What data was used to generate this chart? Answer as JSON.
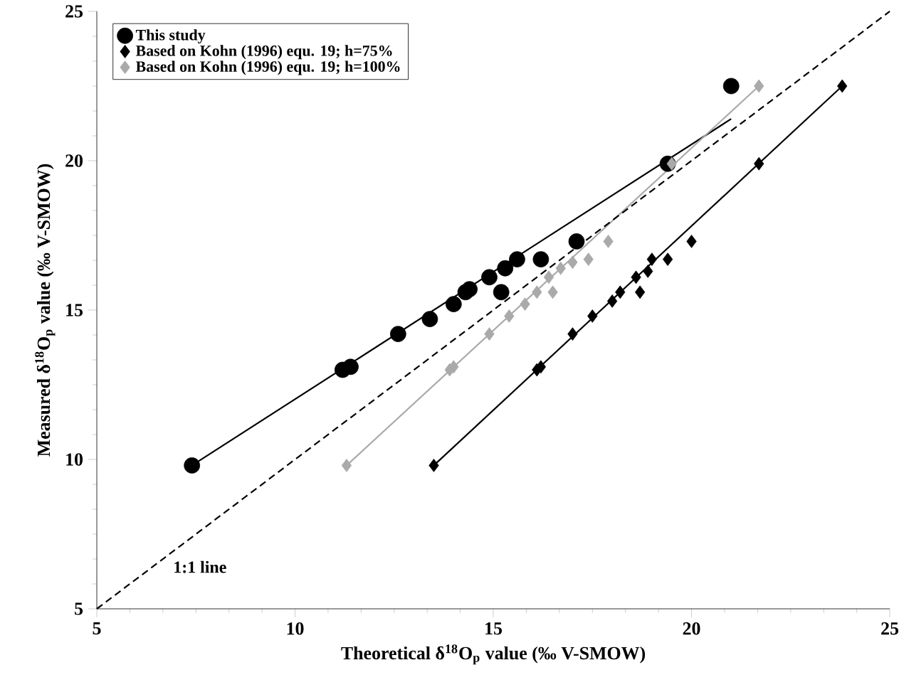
{
  "chart_data": {
    "type": "scatter",
    "xlabel": "Theoretical δ$^{18}$O$_{p}$ value (‰ V-SMOW)",
    "ylabel": "Measured δ$^{18}$O$_{p}$ value (‰ V-SMOW)",
    "xlim": [
      5,
      25
    ],
    "ylim": [
      5,
      25
    ],
    "xticks": [
      5,
      10,
      15,
      20,
      25
    ],
    "yticks": [
      5,
      10,
      15,
      20,
      25
    ],
    "grid": false,
    "legend": "top left",
    "annotations": [
      "1:1 line"
    ],
    "series": [
      {
        "name": "This study",
        "marker": "circle",
        "color": "#000000",
        "x": [
          7.4,
          11.2,
          11.4,
          12.6,
          13.4,
          14.0,
          14.3,
          14.4,
          14.9,
          15.2,
          15.3,
          15.6,
          16.2,
          17.1,
          19.4,
          21.0
        ],
        "values": [
          9.8,
          13.0,
          13.1,
          14.2,
          14.7,
          15.2,
          15.6,
          15.7,
          16.1,
          15.6,
          16.4,
          16.7,
          16.7,
          17.3,
          19.9,
          22.5
        ]
      },
      {
        "name": "Based on Kohn (1996) equ. 19; h=75%",
        "marker": "diamond",
        "color": "#000000",
        "x": [
          13.5,
          16.1,
          16.2,
          17.0,
          17.5,
          18.0,
          18.2,
          18.6,
          18.7,
          18.9,
          19.0,
          19.4,
          20.0,
          21.7,
          23.8
        ],
        "values": [
          9.8,
          13.0,
          13.1,
          14.2,
          14.8,
          15.3,
          15.6,
          16.1,
          15.6,
          16.3,
          16.7,
          16.7,
          17.3,
          19.9,
          22.5
        ]
      },
      {
        "name": "Based on Kohn (1996) equ. 19; h=100%",
        "marker": "diamond",
        "color": "#aaaaaa",
        "x": [
          11.3,
          13.9,
          14.0,
          14.9,
          15.4,
          15.8,
          16.1,
          16.4,
          16.5,
          16.7,
          17.0,
          17.4,
          17.9,
          19.5,
          21.7
        ],
        "values": [
          9.8,
          13.0,
          13.1,
          14.2,
          14.8,
          15.2,
          15.6,
          16.1,
          15.6,
          16.4,
          16.6,
          16.7,
          17.3,
          19.9,
          22.5
        ]
      },
      {
        "type": "line",
        "color": "#000000",
        "line_style": "solid",
        "x": [
          7.4,
          21.0
        ],
        "values": [
          9.8,
          21.4
        ]
      },
      {
        "type": "line",
        "color": "#000000",
        "line_style": "solid",
        "x": [
          13.5,
          23.8
        ],
        "values": [
          9.8,
          22.5
        ]
      },
      {
        "type": "line",
        "color": "#aaaaaa",
        "line_style": "solid",
        "x": [
          11.3,
          21.7
        ],
        "values": [
          9.8,
          22.5
        ]
      },
      {
        "type": "line",
        "color": "#000000",
        "line_style": "dashed",
        "x": [
          5,
          25
        ],
        "values": [
          5,
          25
        ]
      }
    ]
  }
}
